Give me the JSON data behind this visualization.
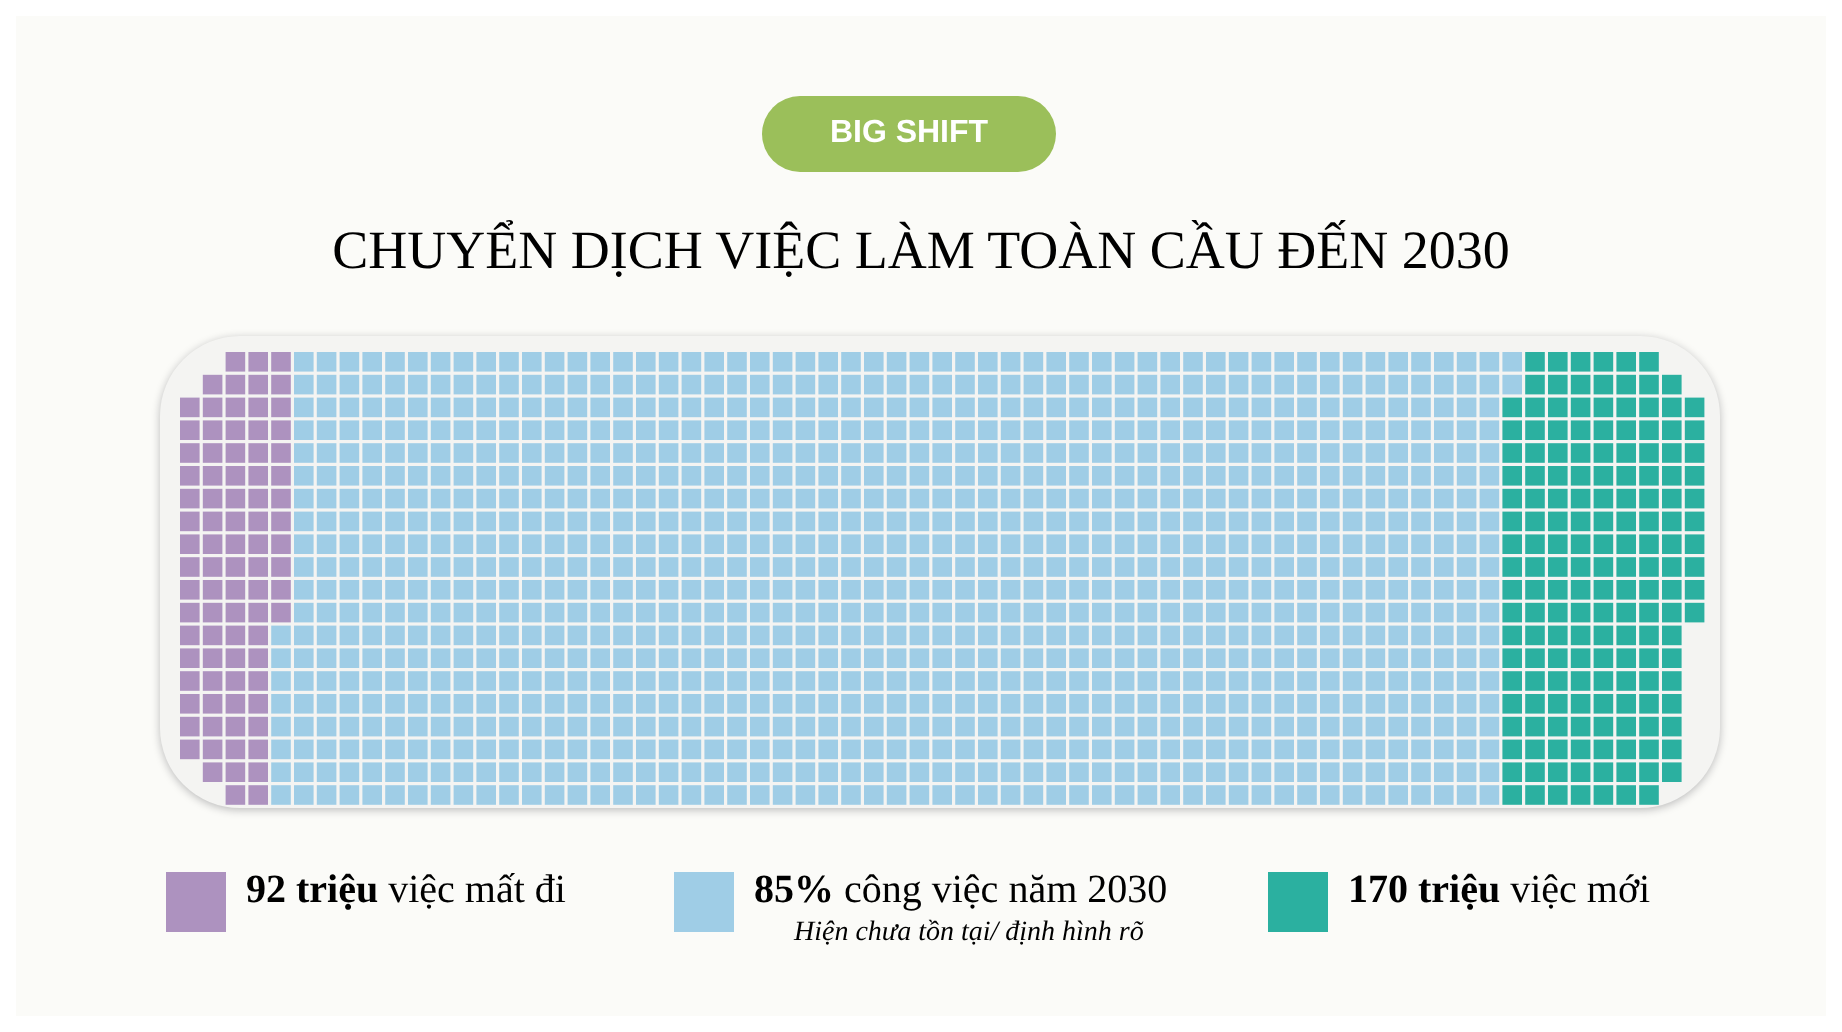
{
  "chart_data": {
    "type": "other",
    "title": "CHUYỂN DỊCH VIỆC LÀM TOÀN CẦU ĐẾN 2030",
    "subtitle": "BIG SHIFT",
    "categories": [
      "việc mất đi",
      "công việc năm 2030",
      "việc mới"
    ],
    "values": [
      92,
      null,
      170
    ],
    "value_labels": [
      "92 triệu",
      "85%",
      "170 triệu"
    ],
    "colors": [
      "#ad92bf",
      "#9fcde6",
      "#2bb0a0"
    ],
    "annotations": [
      {
        "text": "Hiện chưa tồn tại/ định hình rõ",
        "x": "công việc năm 2030"
      }
    ]
  }
}
